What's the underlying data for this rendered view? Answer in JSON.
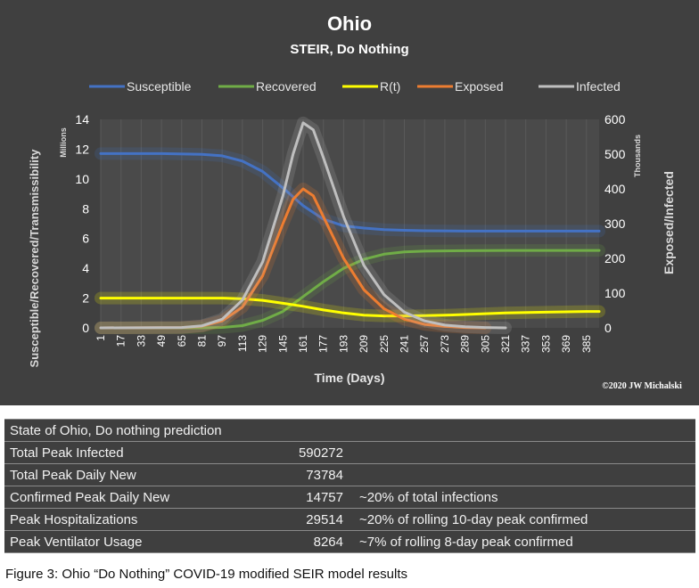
{
  "chart_data": {
    "type": "line",
    "title": "Ohio",
    "subtitle": "STEIR, Do Nothing",
    "xlabel": "Time (Days)",
    "ylabel_left": "Susceptible/Recovered/Transmissibility",
    "ylabel_left_unit": "Millions",
    "ylabel_right": "Exposed/Infected",
    "ylabel_right_unit": "Thousands",
    "credit": "©2020 JW Michalski",
    "legend_position": "top",
    "x_ticks": [
      1,
      17,
      33,
      49,
      65,
      81,
      97,
      113,
      129,
      145,
      161,
      177,
      193,
      209,
      225,
      241,
      257,
      273,
      289,
      305,
      321,
      337,
      353,
      369,
      385
    ],
    "xlim": [
      1,
      395
    ],
    "ylim_left": [
      0,
      14
    ],
    "ylim_right": [
      0,
      600
    ],
    "y_ticks_left": [
      0,
      2,
      4,
      6,
      8,
      10,
      12,
      14
    ],
    "y_ticks_right": [
      0,
      100,
      200,
      300,
      400,
      500,
      600
    ],
    "grid": "vertical",
    "series": [
      {
        "name": "Susceptible",
        "axis": "left",
        "color": "#4472c4",
        "x": [
          1,
          49,
          81,
          97,
          113,
          129,
          145,
          161,
          177,
          193,
          209,
          225,
          241,
          257,
          289,
          321,
          353,
          385,
          395
        ],
        "y": [
          11.7,
          11.7,
          11.65,
          11.55,
          11.2,
          10.5,
          9.4,
          8.2,
          7.3,
          6.85,
          6.7,
          6.6,
          6.55,
          6.52,
          6.5,
          6.5,
          6.5,
          6.5,
          6.5
        ]
      },
      {
        "name": "Recovered",
        "axis": "left",
        "color": "#70ad47",
        "x": [
          1,
          81,
          97,
          113,
          129,
          145,
          161,
          177,
          193,
          209,
          225,
          241,
          257,
          289,
          321,
          353,
          395
        ],
        "y": [
          0,
          0,
          0.03,
          0.15,
          0.5,
          1.1,
          2.1,
          3.1,
          4.0,
          4.6,
          4.95,
          5.1,
          5.15,
          5.18,
          5.2,
          5.2,
          5.2
        ]
      },
      {
        "name": "R(t)",
        "axis": "left",
        "color": "#ffff00",
        "x": [
          1,
          49,
          97,
          113,
          129,
          145,
          161,
          177,
          193,
          209,
          225,
          241,
          257,
          273,
          289,
          305,
          321,
          353,
          385,
          395
        ],
        "y": [
          2.0,
          2.0,
          2.0,
          1.95,
          1.85,
          1.65,
          1.45,
          1.2,
          1.0,
          0.85,
          0.8,
          0.8,
          0.82,
          0.85,
          0.9,
          0.95,
          1.0,
          1.05,
          1.1,
          1.1
        ]
      },
      {
        "name": "Exposed",
        "axis": "right",
        "color": "#ed7d31",
        "x": [
          1,
          65,
          81,
          97,
          113,
          129,
          145,
          153,
          161,
          169,
          177,
          193,
          209,
          225,
          241,
          257,
          273,
          289,
          305
        ],
        "y": [
          0,
          1,
          5,
          20,
          60,
          150,
          300,
          370,
          400,
          380,
          320,
          200,
          110,
          55,
          25,
          10,
          4,
          1,
          0
        ]
      },
      {
        "name": "Infected",
        "axis": "right",
        "color": "#bfbfbf",
        "x": [
          1,
          65,
          81,
          97,
          113,
          129,
          145,
          153,
          161,
          169,
          177,
          193,
          209,
          225,
          241,
          257,
          273,
          289,
          305,
          321
        ],
        "y": [
          0,
          1,
          6,
          25,
          80,
          190,
          380,
          500,
          590,
          570,
          490,
          320,
          180,
          95,
          45,
          20,
          8,
          3,
          1,
          0
        ]
      }
    ]
  },
  "table": {
    "title": "State of Ohio, Do nothing prediction",
    "rows": [
      {
        "label": "Total Peak Infected",
        "value": "590272",
        "note": ""
      },
      {
        "label": "Total Peak Daily New",
        "value": "73784",
        "note": ""
      },
      {
        "label": "Confirmed Peak Daily New",
        "value": "14757",
        "note": "~20% of total infections"
      },
      {
        "label": "Peak Hospitalizations",
        "value": "29514",
        "note": "~20% of rolling 10-day peak confirmed"
      },
      {
        "label": "Peak Ventilator Usage",
        "value": "8264",
        "note": "~7% of rolling 8-day peak confirmed"
      }
    ]
  },
  "caption": "Figure 3: Ohio “Do Nothing” COVID-19 modified SEIR model results"
}
